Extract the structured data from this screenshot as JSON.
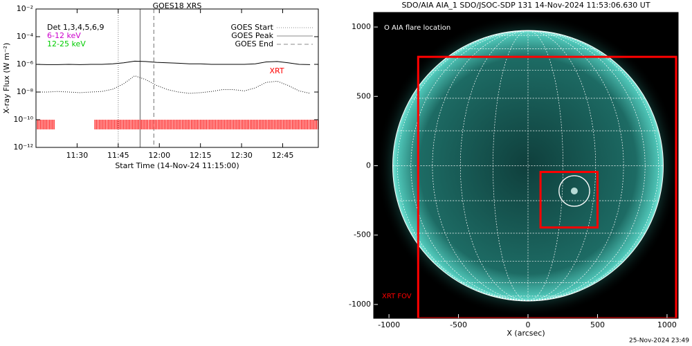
{
  "chart_data": [
    {
      "type": "line",
      "title": "GOES18 XRS",
      "x_label": "Start Time (14-Nov-24 11:15:00)",
      "y_label": "X-ray Flux (W m⁻²)",
      "log_y": true,
      "xlim": [
        0,
        103
      ],
      "xticks": [
        {
          "value": 15,
          "label": "11:30"
        },
        {
          "value": 30,
          "label": "11:45"
        },
        {
          "value": 45,
          "label": "12:00"
        },
        {
          "value": 60,
          "label": "12:15"
        },
        {
          "value": 75,
          "label": "12:30"
        },
        {
          "value": 90,
          "label": "12:45"
        }
      ],
      "ylim": [
        1e-12,
        0.01
      ],
      "yticks": [
        {
          "value": 1e-12,
          "label": "10⁻¹²"
        },
        {
          "value": 1e-10,
          "label": "10⁻¹⁰"
        },
        {
          "value": 1e-08,
          "label": "10⁻⁸"
        },
        {
          "value": 1e-06,
          "label": "10⁻⁶"
        },
        {
          "value": 0.0001,
          "label": "10⁻⁴"
        },
        {
          "value": 0.01,
          "label": "10⁻²"
        }
      ],
      "x": [
        0,
        4,
        8,
        12,
        16,
        20,
        24,
        28,
        32,
        36,
        40,
        44,
        48,
        52,
        56,
        60,
        64,
        68,
        72,
        76,
        80,
        84,
        88,
        92,
        96,
        100
      ],
      "series": [
        {
          "color": "#000000",
          "style": "solid",
          "values": [
            1e-06,
            9.5e-07,
            9.5e-07,
            1e-06,
            9.5e-07,
            1e-06,
            1e-06,
            1.1e-06,
            1.3e-06,
            1.7e-06,
            1.6e-06,
            1.4e-06,
            1.3e-06,
            1.2e-06,
            1.1e-06,
            1.1e-06,
            1e-06,
            1e-06,
            1e-06,
            1e-06,
            1.1e-06,
            1.5e-06,
            1.6e-06,
            1.3e-06,
            1e-06,
            9.5e-07
          ]
        },
        {
          "color": "#000000",
          "style": "dotted",
          "values": [
            1e-08,
            1e-08,
            1.1e-08,
            1e-08,
            9e-09,
            1e-08,
            1.1e-08,
            1.6e-08,
            4e-08,
            1.5e-07,
            8e-08,
            3e-08,
            1.5e-08,
            1e-08,
            8e-09,
            9e-09,
            1.1e-08,
            1.5e-08,
            1.5e-08,
            1.2e-08,
            2e-08,
            5e-08,
            6e-08,
            3e-08,
            1.2e-08,
            8e-09
          ]
        }
      ],
      "legend_texts": [
        {
          "text": "Det 1,3,4,5,6,9",
          "color": "#000000"
        },
        {
          "text": "6-12 keV",
          "color": "#cc00cc"
        },
        {
          "text": "12-25 keV",
          "color": "#00cc00"
        }
      ],
      "events": [
        {
          "name": "GOES Start",
          "x": 30,
          "style": "dotted",
          "color": "#888888"
        },
        {
          "name": "GOES Peak",
          "x": 38,
          "style": "solid",
          "color": "#888888"
        },
        {
          "name": "GOES End",
          "x": 43,
          "style": "dashed",
          "color": "#888888"
        }
      ],
      "xrt": {
        "label": "XRT",
        "color": "#ff0000",
        "band": [
          2e-11,
          1e-10
        ],
        "intervals": [
          [
            0,
            7
          ],
          [
            21.5,
            103
          ]
        ]
      }
    },
    {
      "type": "image",
      "title": "SDO/AIA AIA_1 SDO/JSOC-SDP 131 14-Nov-2024 11:53:06.630 UT",
      "x_label": "X (arcsec)",
      "xlim": [
        -1110,
        1080
      ],
      "xticks": [
        -1000,
        -500,
        0,
        500,
        1000
      ],
      "ylim": [
        -1100,
        1105
      ],
      "yticks": [
        -1000,
        -500,
        0,
        500,
        1000
      ],
      "disk": {
        "radius": 973,
        "color": "#2a9a8c"
      },
      "flare_location": {
        "label": "O AIA flare location",
        "x": 333,
        "y": -182,
        "radius": 110
      },
      "regions": [
        {
          "label": "XRT FOV",
          "color": "#ff0000",
          "x": [
            -790,
            1065
          ],
          "y": [
            -1100,
            785
          ]
        },
        {
          "color": "#ff0000",
          "x": [
            90,
            500
          ],
          "y": [
            -445,
            -45
          ]
        }
      ],
      "footer": "25-Nov-2024 23:49"
    }
  ]
}
